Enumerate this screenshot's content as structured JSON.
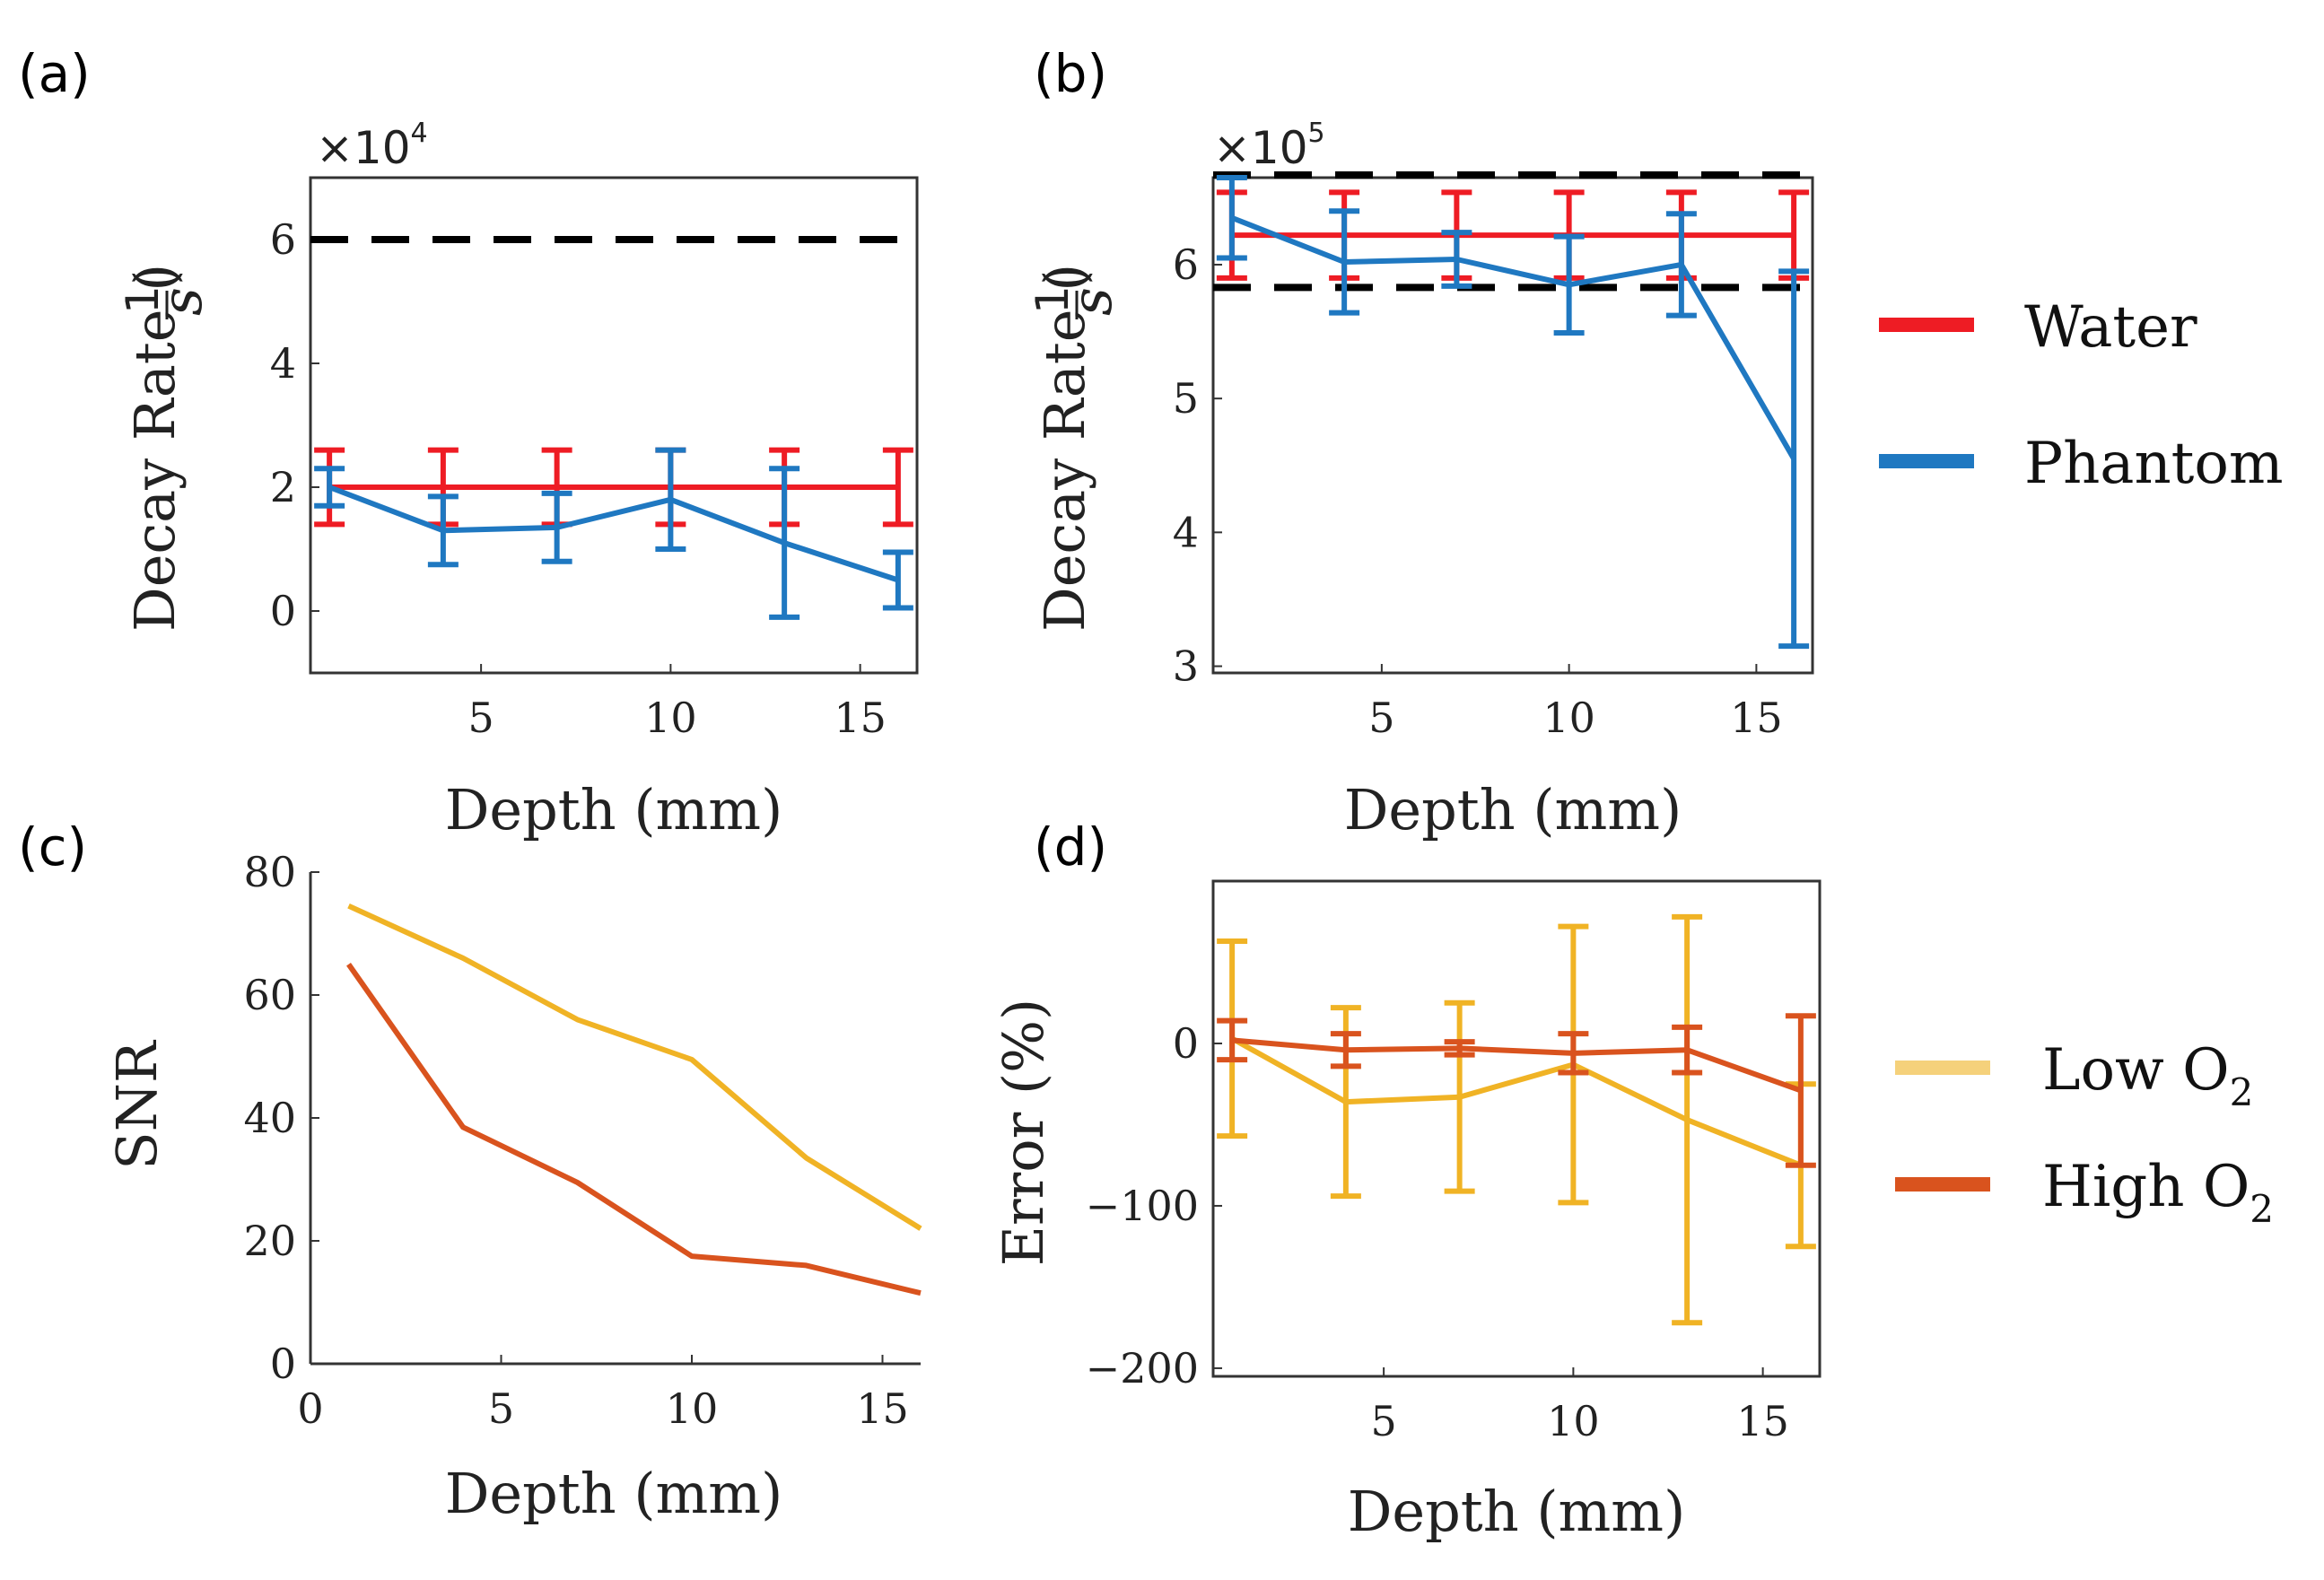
{
  "colors": {
    "water": "#ee1c24",
    "phantom": "#1f78c1",
    "ref": "#000000",
    "low_o2": "#f0b325",
    "high_o2": "#d9531e"
  },
  "legend_ab": {
    "items": [
      "Water",
      "Phantom"
    ]
  },
  "legend_cd": {
    "low_label": "Low O",
    "high_label": "High O",
    "subscript": "2"
  },
  "chart_data": [
    {
      "panel": "(a)",
      "type": "line",
      "x": [
        1,
        4,
        7,
        10,
        13,
        16
      ],
      "xlim": [
        0.5,
        16.5
      ],
      "ylim": [
        -1,
        7
      ],
      "yticks": [
        0,
        2,
        4,
        6
      ],
      "xticks": [
        5,
        10,
        15
      ],
      "scale_label": "×10",
      "scale_exponent": "4",
      "xlabel": "Depth (mm)",
      "ylabel": "Decay Rate (",
      "ylabel_unit_num": "1",
      "ylabel_unit_den": "s",
      "ylabel_close": ")",
      "reference_lines": [
        6.0
      ],
      "series": [
        {
          "name": "Water",
          "values": [
            2.0,
            2.0,
            2.0,
            2.0,
            2.0,
            2.0
          ],
          "err": [
            0.6,
            0.6,
            0.6,
            0.6,
            0.6,
            0.6
          ]
        },
        {
          "name": "Phantom",
          "values": [
            2.0,
            1.3,
            1.35,
            1.8,
            1.1,
            0.5
          ],
          "err": [
            0.3,
            0.55,
            0.55,
            0.8,
            1.2,
            0.45
          ]
        }
      ]
    },
    {
      "panel": "(b)",
      "type": "line",
      "x": [
        1,
        4,
        7,
        10,
        13,
        16
      ],
      "xlim": [
        0.5,
        16.5
      ],
      "ylim": [
        2.95,
        6.65
      ],
      "yticks": [
        3,
        4,
        5,
        6
      ],
      "xticks": [
        5,
        10,
        15
      ],
      "scale_label": "×10",
      "scale_exponent": "5",
      "xlabel": "Depth (mm)",
      "ylabel": "Decay Rate (",
      "ylabel_unit_num": "1",
      "ylabel_unit_den": "s",
      "ylabel_close": ")",
      "reference_lines": [
        6.67,
        5.83
      ],
      "series": [
        {
          "name": "Water",
          "values": [
            6.22,
            6.22,
            6.22,
            6.22,
            6.22,
            6.22
          ],
          "err": [
            0.32,
            0.32,
            0.32,
            0.32,
            0.32,
            0.32
          ]
        },
        {
          "name": "Phantom",
          "values": [
            6.35,
            6.02,
            6.04,
            5.85,
            6.0,
            4.55
          ],
          "err": [
            0.3,
            0.38,
            0.2,
            0.36,
            0.38,
            1.4
          ]
        }
      ]
    },
    {
      "panel": "(c)",
      "type": "line",
      "x": [
        1,
        4,
        7,
        10,
        13,
        16
      ],
      "xlim": [
        0,
        16
      ],
      "ylim": [
        0,
        80
      ],
      "yticks": [
        0,
        20,
        40,
        60,
        80
      ],
      "xticks": [
        0,
        5,
        10,
        15
      ],
      "xlabel": "Depth (mm)",
      "ylabel": "SNR",
      "series": [
        {
          "name": "Low O2",
          "values": [
            74.5,
            66,
            56,
            49.5,
            33.5,
            22
          ]
        },
        {
          "name": "High O2",
          "values": [
            65,
            38.5,
            29.5,
            17.5,
            16,
            11.5
          ]
        }
      ]
    },
    {
      "panel": "(d)",
      "type": "line",
      "x": [
        1,
        4,
        7,
        10,
        13,
        16
      ],
      "xlim": [
        0.5,
        16.5
      ],
      "ylim": [
        -205,
        100
      ],
      "yticks": [
        -200,
        -100,
        0
      ],
      "xticks": [
        5,
        10,
        15
      ],
      "xlabel": "Depth (mm)",
      "ylabel": "Error (%)",
      "series": [
        {
          "name": "Low O2",
          "values": [
            3,
            -36,
            -33,
            -13,
            -47,
            -75
          ],
          "err": [
            60,
            58,
            58,
            85,
            125,
            50
          ]
        },
        {
          "name": "High O2",
          "values": [
            2,
            -4,
            -3,
            -6,
            -4,
            -29
          ],
          "err": [
            12,
            10,
            4,
            12,
            14,
            46
          ]
        }
      ]
    }
  ]
}
